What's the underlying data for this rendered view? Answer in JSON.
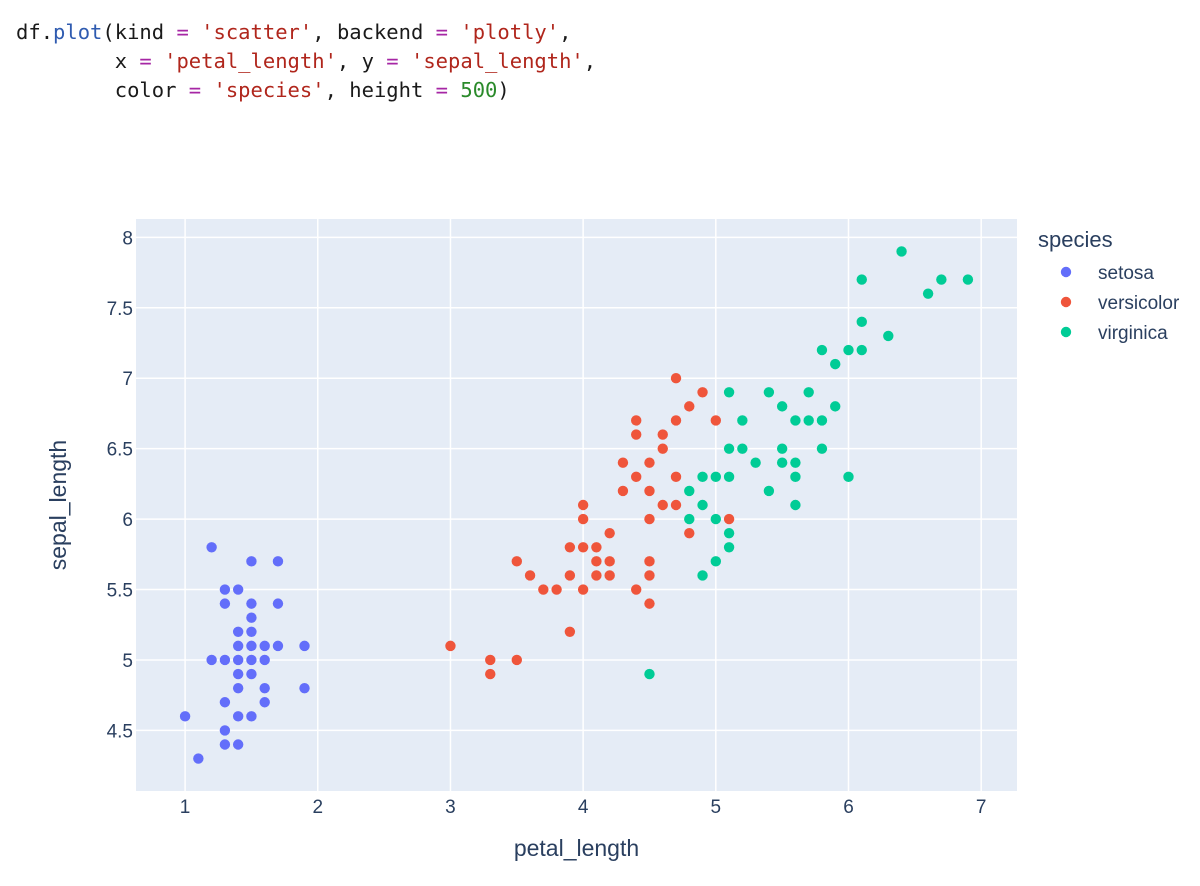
{
  "code": {
    "line1": {
      "obj": "df",
      "dot": ".",
      "fn": "plot",
      "p_open": "(",
      "kw1": "kind",
      "eq1": " = ",
      "s1": "'scatter'",
      "c1": ", ",
      "kw2": "backend",
      "eq2": " = ",
      "s2": "'plotly'",
      "c2": ","
    },
    "line2": {
      "indent": "        ",
      "kw1": "x",
      "eq1": " = ",
      "s1": "'petal_length'",
      "c1": ", ",
      "kw2": "y",
      "eq2": " = ",
      "s2": "'sepal_length'",
      "c2": ","
    },
    "line3": {
      "indent": "        ",
      "kw1": "color",
      "eq1": " = ",
      "s1": "'species'",
      "c1": ", ",
      "kw2": "height",
      "eq2": " = ",
      "n2": "500",
      "p_close": ")"
    }
  },
  "chart_data": {
    "type": "scatter",
    "xlabel": "petal_length",
    "ylabel": "sepal_length",
    "xlim": [
      0.63,
      7.27
    ],
    "ylim": [
      4.07,
      8.13
    ],
    "x_ticks": [
      1,
      2,
      3,
      4,
      5,
      6,
      7
    ],
    "y_ticks": [
      4.5,
      5,
      5.5,
      6,
      6.5,
      7,
      7.5,
      8
    ],
    "grid": true,
    "plot_bgcolor": "#e5ecf6",
    "legend": {
      "title": "species",
      "placement": "right"
    },
    "series": [
      {
        "name": "setosa",
        "color": "#636efa",
        "points": [
          [
            1.0,
            4.6
          ],
          [
            1.1,
            4.3
          ],
          [
            1.2,
            5.8
          ],
          [
            1.2,
            5.0
          ],
          [
            1.3,
            5.5
          ],
          [
            1.3,
            5.4
          ],
          [
            1.3,
            5.0
          ],
          [
            1.3,
            4.7
          ],
          [
            1.3,
            4.5
          ],
          [
            1.3,
            4.4
          ],
          [
            1.4,
            5.5
          ],
          [
            1.4,
            5.2
          ],
          [
            1.4,
            5.1
          ],
          [
            1.4,
            5.0
          ],
          [
            1.4,
            4.9
          ],
          [
            1.4,
            4.8
          ],
          [
            1.4,
            4.6
          ],
          [
            1.4,
            4.4
          ],
          [
            1.5,
            5.7
          ],
          [
            1.5,
            5.4
          ],
          [
            1.5,
            5.3
          ],
          [
            1.5,
            5.2
          ],
          [
            1.5,
            5.1
          ],
          [
            1.5,
            5.0
          ],
          [
            1.5,
            4.9
          ],
          [
            1.5,
            4.6
          ],
          [
            1.6,
            5.1
          ],
          [
            1.6,
            5.0
          ],
          [
            1.6,
            4.8
          ],
          [
            1.6,
            4.7
          ],
          [
            1.7,
            5.7
          ],
          [
            1.7,
            5.4
          ],
          [
            1.7,
            5.1
          ],
          [
            1.9,
            5.1
          ],
          [
            1.9,
            4.8
          ]
        ]
      },
      {
        "name": "versicolor",
        "color": "#ef553b",
        "points": [
          [
            3.0,
            5.1
          ],
          [
            3.3,
            5.0
          ],
          [
            3.3,
            4.9
          ],
          [
            3.5,
            5.7
          ],
          [
            3.5,
            5.0
          ],
          [
            3.6,
            5.6
          ],
          [
            3.7,
            5.5
          ],
          [
            3.8,
            5.5
          ],
          [
            3.9,
            5.8
          ],
          [
            3.9,
            5.6
          ],
          [
            3.9,
            5.2
          ],
          [
            4.0,
            6.1
          ],
          [
            4.0,
            6.0
          ],
          [
            4.0,
            5.8
          ],
          [
            4.0,
            5.5
          ],
          [
            4.1,
            5.8
          ],
          [
            4.1,
            5.7
          ],
          [
            4.1,
            5.6
          ],
          [
            4.2,
            5.9
          ],
          [
            4.2,
            5.7
          ],
          [
            4.2,
            5.6
          ],
          [
            4.3,
            6.4
          ],
          [
            4.3,
            6.2
          ],
          [
            4.4,
            6.7
          ],
          [
            4.4,
            6.6
          ],
          [
            4.4,
            6.3
          ],
          [
            4.4,
            5.5
          ],
          [
            4.5,
            6.4
          ],
          [
            4.5,
            6.2
          ],
          [
            4.5,
            6.0
          ],
          [
            4.5,
            5.7
          ],
          [
            4.5,
            5.6
          ],
          [
            4.5,
            5.4
          ],
          [
            4.6,
            6.6
          ],
          [
            4.6,
            6.5
          ],
          [
            4.6,
            6.1
          ],
          [
            4.7,
            7.0
          ],
          [
            4.7,
            6.7
          ],
          [
            4.7,
            6.3
          ],
          [
            4.7,
            6.1
          ],
          [
            4.8,
            6.8
          ],
          [
            4.8,
            5.9
          ],
          [
            4.9,
            6.9
          ],
          [
            5.0,
            6.7
          ],
          [
            5.1,
            6.0
          ]
        ]
      },
      {
        "name": "virginica",
        "color": "#00cc96",
        "points": [
          [
            4.5,
            4.9
          ],
          [
            4.8,
            6.2
          ],
          [
            4.8,
            6.0
          ],
          [
            4.9,
            6.3
          ],
          [
            4.9,
            6.1
          ],
          [
            4.9,
            5.6
          ],
          [
            5.0,
            6.3
          ],
          [
            5.0,
            6.0
          ],
          [
            5.0,
            5.7
          ],
          [
            5.1,
            6.9
          ],
          [
            5.1,
            6.5
          ],
          [
            5.1,
            6.3
          ],
          [
            5.1,
            5.9
          ],
          [
            5.1,
            5.8
          ],
          [
            5.2,
            6.7
          ],
          [
            5.2,
            6.5
          ],
          [
            5.3,
            6.4
          ],
          [
            5.4,
            6.9
          ],
          [
            5.4,
            6.2
          ],
          [
            5.5,
            6.8
          ],
          [
            5.5,
            6.5
          ],
          [
            5.5,
            6.4
          ],
          [
            5.6,
            6.7
          ],
          [
            5.6,
            6.4
          ],
          [
            5.6,
            6.3
          ],
          [
            5.6,
            6.1
          ],
          [
            5.7,
            6.9
          ],
          [
            5.7,
            6.7
          ],
          [
            5.8,
            7.2
          ],
          [
            5.8,
            6.7
          ],
          [
            5.8,
            6.5
          ],
          [
            5.9,
            7.1
          ],
          [
            5.9,
            6.8
          ],
          [
            6.0,
            7.2
          ],
          [
            6.0,
            6.3
          ],
          [
            6.1,
            7.7
          ],
          [
            6.1,
            7.4
          ],
          [
            6.1,
            7.2
          ],
          [
            6.3,
            7.3
          ],
          [
            6.4,
            7.9
          ],
          [
            6.6,
            7.6
          ],
          [
            6.7,
            7.7
          ],
          [
            6.9,
            7.7
          ]
        ]
      }
    ]
  }
}
